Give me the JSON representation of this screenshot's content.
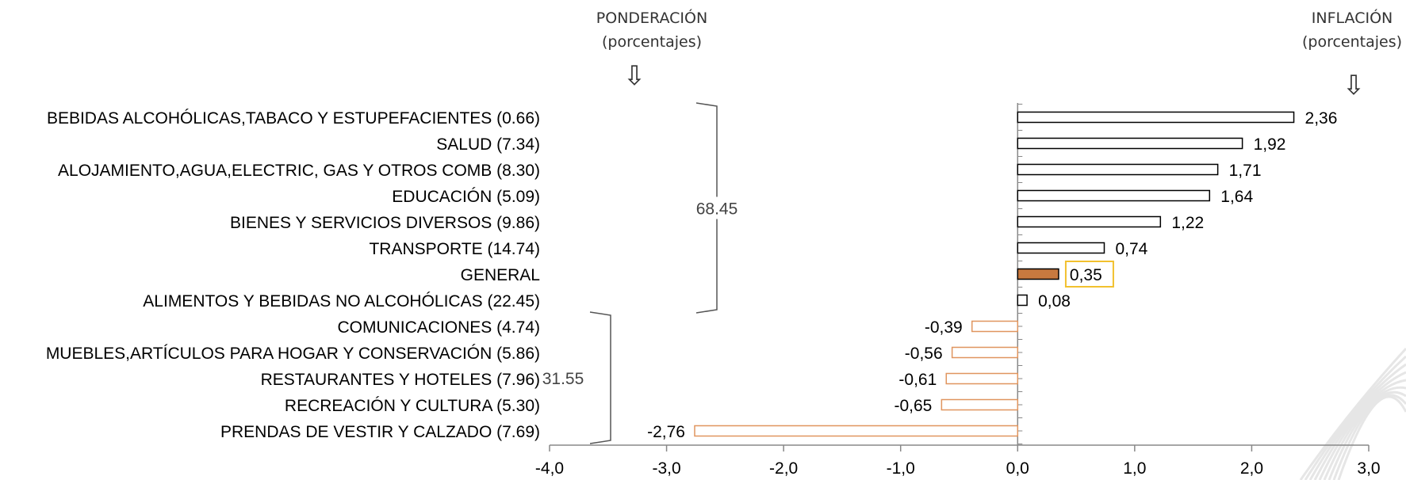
{
  "header": {
    "weight_title": "PONDERACIÓN",
    "weight_subtitle": "(porcentajes)",
    "inflation_title": "INFLACIÓN",
    "inflation_subtitle": "(porcentajes)",
    "arrow_glyph": "⇩"
  },
  "groups": [
    {
      "label": "68.45",
      "from": 0,
      "to": 7
    },
    {
      "label": "31.55",
      "from": 8,
      "to": 12
    }
  ],
  "colors": {
    "positive_bar_stroke": "#000000",
    "negative_bar_stroke": "#e0955f",
    "highlight_fill": "#c8793f",
    "highlight_box": "#f2c12e",
    "axis": "#888888"
  },
  "chart_data": {
    "type": "bar",
    "orientation": "horizontal",
    "categories": [
      "BEBIDAS ALCOHÓLICAS,TABACO Y ESTUPEFACIENTES (0.66)",
      "SALUD (7.34)",
      "ALOJAMIENTO,AGUA,ELECTRIC, GAS Y OTROS COMB (8.30)",
      "EDUCACIÓN (5.09)",
      "BIENES Y SERVICIOS DIVERSOS (9.86)",
      "TRANSPORTE (14.74)",
      "GENERAL",
      "ALIMENTOS Y BEBIDAS NO ALCOHÓLICAS (22.45)",
      "COMUNICACIONES (4.74)",
      "MUEBLES,ARTÍCULOS PARA HOGAR Y CONSERVACIÓN (5.86)",
      "RESTAURANTES Y HOTELES (7.96)",
      "RECREACIÓN Y CULTURA (5.30)",
      "PRENDAS DE VESTIR Y CALZADO (7.69)"
    ],
    "values": [
      2.36,
      1.92,
      1.71,
      1.64,
      1.22,
      0.74,
      0.35,
      0.08,
      -0.39,
      -0.56,
      -0.61,
      -0.65,
      -2.76
    ],
    "value_labels": [
      "2,36",
      "1,92",
      "1,71",
      "1,64",
      "1,22",
      "0,74",
      "0,35",
      "0,08",
      "-0,39",
      "-0,56",
      "-0,61",
      "-0,65",
      "-2,76"
    ],
    "highlight_index": 6,
    "xlim": [
      -4.0,
      3.0
    ],
    "xticks": [
      -4.0,
      -3.0,
      -2.0,
      -1.0,
      0.0,
      1.0,
      2.0,
      3.0
    ],
    "xtick_labels": [
      "-4,0",
      "-3,0",
      "-2,0",
      "-1,0",
      "0,0",
      "1,0",
      "2,0",
      "3,0"
    ],
    "grid": false
  }
}
